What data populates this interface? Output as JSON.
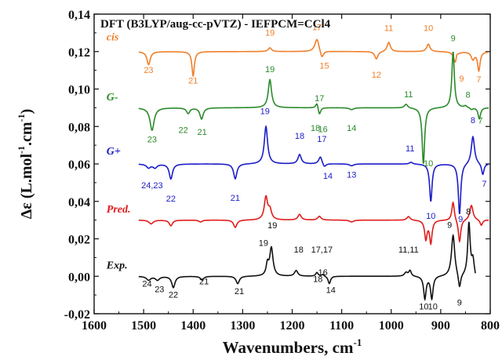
{
  "chart_data": {
    "type": "line",
    "title": "DFT (B3LYP/aug-cc-pVTZ) - IEFPCM=CCl4",
    "xlabel": "Wavenumbers, cm",
    "xlabel_sup": "-1",
    "ylabel_main": "Δε (L.mol",
    "ylabel_sup1": "-1",
    "ylabel_mid": ".cm",
    "ylabel_sup2": "-1",
    "ylabel_end": ")",
    "xlim": [
      1600,
      800
    ],
    "ylim": [
      -0.02,
      0.14
    ],
    "x_ticks": [
      1600,
      1500,
      1400,
      1300,
      1200,
      1100,
      1000,
      900,
      800
    ],
    "y_ticks": [
      -0.02,
      0.0,
      0.02,
      0.04,
      0.06,
      0.08,
      0.1,
      0.12,
      0.14
    ],
    "y_tick_labels": [
      "-0,02",
      "0,00",
      "0,02",
      "0,04",
      "0,06",
      "0,08",
      "0,10",
      "0,12",
      "0,14"
    ],
    "colors": {
      "cis": "#f07f2a",
      "gminus": "#2a8a2a",
      "gplus": "#1c1cc8",
      "pred": "#e01c1c",
      "exp": "#111111"
    },
    "series": [
      {
        "name": "cis",
        "color": "#f07f2a",
        "label_x": 1575,
        "label_y": 0.126,
        "baseline": 0.12,
        "peaks": [
          [
            1490,
            -0.007,
            4
          ],
          [
            1400,
            -0.013,
            3
          ],
          [
            1245,
            0.002,
            4
          ],
          [
            1150,
            0.007,
            5
          ],
          [
            1140,
            -0.004,
            4
          ],
          [
            1030,
            -0.004,
            4
          ],
          [
            1005,
            0.005,
            4
          ],
          [
            925,
            0.004,
            4
          ],
          [
            870,
            -0.008,
            4
          ],
          [
            868,
            0.004,
            3
          ],
          [
            835,
            -0.004,
            4
          ],
          [
            823,
            -0.01,
            3
          ]
        ],
        "annotations": [
          [
            "23",
            1490,
            0.1085
          ],
          [
            "21",
            1400,
            0.103
          ],
          [
            "19",
            1245,
            0.1285
          ],
          [
            "17",
            1150,
            0.1315
          ],
          [
            "15",
            1135,
            0.1108
          ],
          [
            "12",
            1030,
            0.106
          ],
          [
            "11",
            1005,
            0.131
          ],
          [
            "10",
            925,
            0.131
          ],
          [
            "9",
            858,
            0.104
          ],
          [
            "7",
            823,
            0.1035
          ]
        ]
      },
      {
        "name": "G-",
        "color": "#2a8a2a",
        "label_x": 1575,
        "label_y": 0.094,
        "baseline": 0.09,
        "peaks": [
          [
            1483,
            -0.012,
            5
          ],
          [
            1410,
            -0.003,
            4
          ],
          [
            1383,
            -0.006,
            4
          ],
          [
            1245,
            0.015,
            4
          ],
          [
            1150,
            0.003,
            3
          ],
          [
            1145,
            -0.004,
            3
          ],
          [
            1080,
            -0.001,
            5
          ],
          [
            970,
            0.002,
            4
          ],
          [
            935,
            -0.03,
            3
          ],
          [
            875,
            0.03,
            3
          ],
          [
            850,
            0.001,
            3
          ],
          [
            838,
            -0.001,
            3
          ],
          [
            822,
            -0.006,
            3
          ]
        ],
        "annotations": [
          [
            "23",
            1483,
            0.0715
          ],
          [
            "22",
            1420,
            0.0765
          ],
          [
            "21",
            1382,
            0.0755
          ],
          [
            "19",
            1245,
            0.109
          ],
          [
            "17",
            1145,
            0.0935
          ],
          [
            "18",
            1153,
            0.0775
          ],
          [
            "16",
            1138,
            0.077
          ],
          [
            "14",
            1080,
            0.0775
          ],
          [
            "11",
            965,
            0.0955
          ],
          [
            "10",
            925,
            0.0587
          ],
          [
            "9",
            875,
            0.1255
          ],
          [
            "8",
            845,
            0.0953
          ],
          [
            "7",
            820,
            0.0815
          ]
        ]
      },
      {
        "name": "G+",
        "color": "#1c1cc8",
        "label_x": 1575,
        "label_y": 0.065,
        "baseline": 0.06,
        "peaks": [
          [
            1490,
            -0.002,
            5
          ],
          [
            1477,
            -0.002,
            5
          ],
          [
            1445,
            -0.008,
            4
          ],
          [
            1315,
            -0.008,
            4
          ],
          [
            1253,
            0.02,
            4
          ],
          [
            1185,
            0.005,
            4
          ],
          [
            1143,
            0.004,
            4
          ],
          [
            1135,
            -0.002,
            4
          ],
          [
            1080,
            -0.001,
            5
          ],
          [
            960,
            0.001,
            4
          ],
          [
            920,
            -0.02,
            3
          ],
          [
            862,
            -0.027,
            3
          ],
          [
            835,
            0.015,
            4
          ],
          [
            815,
            -0.006,
            3
          ]
        ],
        "annotations": [
          [
            "24,23",
            1483,
            0.047
          ],
          [
            "22",
            1445,
            0.0398
          ],
          [
            "21",
            1315,
            0.0404
          ],
          [
            "19",
            1255,
            0.0865
          ],
          [
            "18",
            1185,
            0.0735
          ],
          [
            "17",
            1140,
            0.0718
          ],
          [
            "14",
            1128,
            0.0521
          ],
          [
            "13",
            1080,
            0.0526
          ],
          [
            "11",
            962,
            0.0667
          ],
          [
            "10",
            920,
            0.0306
          ],
          [
            "9",
            860,
            0.029
          ],
          [
            "8",
            835,
            0.0817
          ],
          [
            "7",
            812,
            0.0478
          ]
        ]
      },
      {
        "name": "Pred.",
        "color": "#e01c1c",
        "label_x": 1575,
        "label_y": 0.034,
        "baseline": 0.03,
        "peaks": [
          [
            1485,
            -0.002,
            5
          ],
          [
            1445,
            -0.003,
            4
          ],
          [
            1385,
            -0.001,
            4
          ],
          [
            1315,
            -0.004,
            4
          ],
          [
            1253,
            0.012,
            4
          ],
          [
            1245,
            0.005,
            4
          ],
          [
            1185,
            0.003,
            4
          ],
          [
            1145,
            0.002,
            4
          ],
          [
            1080,
            -0.001,
            5
          ],
          [
            965,
            0.002,
            4
          ],
          [
            930,
            -0.01,
            3
          ],
          [
            920,
            -0.012,
            3
          ],
          [
            875,
            0.01,
            3
          ],
          [
            862,
            -0.012,
            3
          ],
          [
            838,
            0.008,
            4
          ],
          [
            818,
            -0.003,
            3
          ]
        ],
        "annotations": []
      },
      {
        "name": "Exp.",
        "color": "#111111",
        "label_x": 1575,
        "label_y": 0.004,
        "baseline": 0.0,
        "peaks": [
          [
            1490,
            -0.002,
            5
          ],
          [
            1472,
            -0.002,
            5
          ],
          [
            1440,
            -0.006,
            4
          ],
          [
            1382,
            -0.002,
            4
          ],
          [
            1310,
            -0.004,
            4
          ],
          [
            1250,
            0.006,
            3
          ],
          [
            1242,
            0.015,
            4
          ],
          [
            1192,
            0.003,
            4
          ],
          [
            1150,
            0.002,
            3
          ],
          [
            1138,
            0.001,
            3
          ],
          [
            1125,
            -0.004,
            3
          ],
          [
            970,
            0.002,
            4
          ],
          [
            962,
            0.003,
            3
          ],
          [
            932,
            -0.012,
            3
          ],
          [
            918,
            -0.012,
            3
          ],
          [
            875,
            0.022,
            4
          ],
          [
            862,
            -0.008,
            3
          ],
          [
            843,
            0.028,
            3
          ],
          [
            835,
            0.008,
            3
          ],
          [
            828,
            -0.004,
            2
          ]
        ],
        "annotations": [
          [
            "24",
            1493,
            -0.0055
          ],
          [
            "23",
            1468,
            -0.0085
          ],
          [
            "22",
            1440,
            -0.0115
          ],
          [
            "21",
            1378,
            -0.0043
          ],
          [
            "21",
            1307,
            -0.0095
          ],
          [
            "19",
            1258,
            0.0163
          ],
          [
            "19",
            1240,
            0.0257
          ],
          [
            "18",
            1187,
            0.0127
          ],
          [
            "17,17",
            1140,
            0.0127
          ],
          [
            "18",
            1148,
            -0.003
          ],
          [
            "16",
            1138,
            0.0005
          ],
          [
            "14",
            1122,
            -0.0088
          ],
          [
            "11,11",
            965,
            0.0127
          ],
          [
            "10",
            934,
            -0.0177
          ],
          [
            "10",
            916,
            -0.0177
          ],
          [
            "9",
            882,
            0.0258
          ],
          [
            "8",
            844,
            0.033
          ],
          [
            "9",
            862,
            -0.0157
          ]
        ]
      }
    ]
  }
}
